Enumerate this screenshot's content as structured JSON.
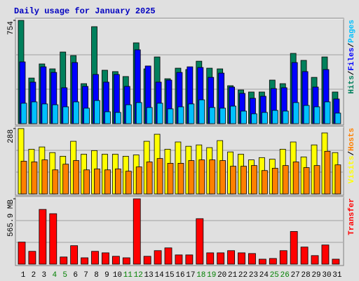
{
  "title": "Daily usage for January 2025",
  "chart_data": [
    {
      "type": "bar",
      "ylim": [
        0,
        754
      ],
      "yticks": [
        754
      ],
      "grid": true,
      "legend_separator": "/",
      "series": [
        {
          "name": "Hits",
          "color": "#00805c",
          "values": [
            754,
            333,
            436,
            400,
            523,
            497,
            292,
            708,
            390,
            380,
            344,
            590,
            400,
            487,
            328,
            405,
            395,
            456,
            405,
            400,
            277,
            246,
            231,
            231,
            318,
            292,
            513,
            462,
            338,
            487,
            231
          ]
        },
        {
          "name": "Files",
          "color": "#0000ff",
          "values": [
            451,
            303,
            415,
            374,
            262,
            446,
            272,
            359,
            303,
            359,
            272,
            539,
            421,
            303,
            318,
            374,
            415,
            410,
            338,
            369,
            267,
            221,
            185,
            200,
            256,
            262,
            446,
            380,
            267,
            395,
            180
          ]
        },
        {
          "name": "Pages",
          "color": "#00c0ff",
          "values": [
            149,
            159,
            144,
            138,
            123,
            159,
            113,
            169,
            87,
            82,
            138,
            154,
            118,
            149,
            108,
            123,
            144,
            174,
            118,
            113,
            128,
            92,
            72,
            82,
            97,
            92,
            154,
            133,
            123,
            159,
            77
          ]
        }
      ]
    },
    {
      "type": "bar",
      "ylim": [
        0,
        288
      ],
      "yticks": [
        288
      ],
      "grid": true,
      "legend_separator": "/",
      "series": [
        {
          "name": "Visits",
          "color": "#ffff00",
          "values": [
            288,
            197,
            207,
            182,
            166,
            232,
            175,
            191,
            175,
            175,
            166,
            172,
            232,
            263,
            197,
            229,
            210,
            216,
            204,
            235,
            185,
            175,
            150,
            160,
            153,
            197,
            229,
            163,
            216,
            269,
            182
          ]
        },
        {
          "name": "Hosts",
          "color": "#ff8000",
          "values": [
            144,
            141,
            150,
            106,
            131,
            147,
            106,
            110,
            106,
            110,
            100,
            119,
            141,
            156,
            135,
            135,
            147,
            150,
            150,
            147,
            122,
            122,
            125,
            103,
            113,
            125,
            141,
            116,
            125,
            188,
            128
          ]
        }
      ]
    },
    {
      "type": "bar",
      "ylim": [
        0,
        565.9
      ],
      "yticks": [
        {
          "value": 565.9,
          "label": "565.9 MB"
        }
      ],
      "grid": true,
      "categories": [
        "1",
        "2",
        "3",
        "4",
        "5",
        "6",
        "7",
        "8",
        "9",
        "10",
        "11",
        "12",
        "13",
        "14",
        "15",
        "16",
        "17",
        "18",
        "19",
        "20",
        "21",
        "22",
        "23",
        "24",
        "25",
        "26",
        "27",
        "28",
        "29",
        "30",
        "31"
      ],
      "highlight_categories": [
        "4",
        "5",
        "11",
        "12",
        "18",
        "19",
        "25",
        "26"
      ],
      "highlight_color": "#008000",
      "series": [
        {
          "name": "Transfer",
          "color": "#ff0000",
          "values": [
            191,
            111,
            474,
            437,
            62,
            160,
            55,
            111,
            98,
            68,
            55,
            565.9,
            68,
            117,
            141,
            80,
            80,
            394,
            98,
            98,
            117,
            98,
            92,
            43,
            49,
            117,
            283,
            148,
            74,
            166,
            43
          ]
        }
      ]
    }
  ]
}
